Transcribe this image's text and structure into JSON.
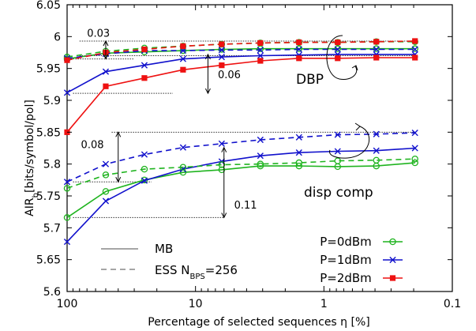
{
  "chart_data": {
    "type": "line",
    "xlabel": "Percentage of selected sequences η [%]",
    "ylabel": "AIR_b [bits/symbol/pol]",
    "x_scale": "log",
    "x_reversed": true,
    "xlim": [
      100,
      0.1
    ],
    "ylim": [
      5.6,
      6.05
    ],
    "xticks": [
      {
        "v": 100,
        "label": "100"
      },
      {
        "v": 10,
        "label": "10"
      },
      {
        "v": 1,
        "label": "1"
      },
      {
        "v": 0.1,
        "label": "0.1"
      }
    ],
    "yticks": [
      {
        "v": 5.6,
        "label": "5.6"
      },
      {
        "v": 5.65,
        "label": "5.65"
      },
      {
        "v": 5.7,
        "label": "5.7"
      },
      {
        "v": 5.75,
        "label": "5.75"
      },
      {
        "v": 5.8,
        "label": "5.8"
      },
      {
        "v": 5.85,
        "label": "5.85"
      },
      {
        "v": 5.9,
        "label": "5.9"
      },
      {
        "v": 5.95,
        "label": "5.95"
      },
      {
        "v": 6.0,
        "label": "6"
      },
      {
        "v": 6.05,
        "label": "6.05"
      }
    ],
    "grid": false,
    "legend": {
      "style_entries": [
        {
          "label": "MB",
          "dash": "solid"
        },
        {
          "label": "ESS N",
          "sub": "BPS",
          "suffix": "=256",
          "dash": "dashed"
        }
      ],
      "power_entries": [
        {
          "label": "P=0dBm",
          "color": "#1fb41f",
          "marker": "circle"
        },
        {
          "label": "P=1dBm",
          "color": "#1111cc",
          "marker": "x"
        },
        {
          "label": "P=2dBm",
          "color": "#ee1111",
          "marker": "square"
        }
      ],
      "placement": "bottom-right"
    },
    "x": [
      100,
      50,
      25,
      12.5,
      6.25,
      3.125,
      1.5625,
      0.78125,
      0.390625,
      0.1953125
    ],
    "series": [
      {
        "group": "DBP",
        "power": "P=0dBm",
        "color": "#1fb41f",
        "marker": "circle",
        "dash": "solid",
        "values": [
          5.965,
          5.974,
          5.976,
          5.978,
          5.98,
          5.981,
          5.981,
          5.981,
          5.981,
          5.981
        ]
      },
      {
        "group": "DBP",
        "power": "P=1dBm",
        "color": "#1111cc",
        "marker": "x",
        "dash": "solid",
        "values": [
          5.912,
          5.945,
          5.955,
          5.965,
          5.968,
          5.97,
          5.971,
          5.972,
          5.972,
          5.972
        ]
      },
      {
        "group": "DBP",
        "power": "P=2dBm",
        "color": "#ee1111",
        "marker": "square",
        "dash": "solid",
        "values": [
          5.85,
          5.922,
          5.935,
          5.948,
          5.955,
          5.962,
          5.966,
          5.966,
          5.967,
          5.967
        ]
      },
      {
        "group": "DBP",
        "power": "P=0dBm",
        "color": "#1fb41f",
        "marker": "circle",
        "dash": "dashed",
        "values": [
          5.968,
          5.977,
          5.982,
          5.985,
          5.988,
          5.99,
          5.991,
          5.991,
          5.992,
          5.992
        ]
      },
      {
        "group": "DBP",
        "power": "P=1dBm",
        "color": "#1111cc",
        "marker": "x",
        "dash": "dashed",
        "values": [
          5.966,
          5.973,
          5.978,
          5.978,
          5.979,
          5.979,
          5.98,
          5.98,
          5.98,
          5.98
        ]
      },
      {
        "group": "DBP",
        "power": "P=2dBm",
        "color": "#ee1111",
        "marker": "square",
        "dash": "dashed",
        "values": [
          5.963,
          5.975,
          5.98,
          5.985,
          5.988,
          5.99,
          5.991,
          5.991,
          5.992,
          5.993
        ]
      },
      {
        "group": "disp comp",
        "power": "P=0dBm",
        "color": "#1fb41f",
        "marker": "circle",
        "dash": "solid",
        "values": [
          5.716,
          5.757,
          5.775,
          5.787,
          5.791,
          5.797,
          5.797,
          5.796,
          5.797,
          5.802
        ]
      },
      {
        "group": "disp comp",
        "power": "P=1dBm",
        "color": "#1111cc",
        "marker": "x",
        "dash": "solid",
        "values": [
          5.678,
          5.742,
          5.774,
          5.792,
          5.804,
          5.813,
          5.818,
          5.82,
          5.821,
          5.825
        ]
      },
      {
        "group": "disp comp",
        "power": "P=0dBm",
        "color": "#1fb41f",
        "marker": "circle",
        "dash": "dashed",
        "values": [
          5.762,
          5.783,
          5.792,
          5.795,
          5.799,
          5.8,
          5.802,
          5.805,
          5.806,
          5.808
        ]
      },
      {
        "group": "disp comp",
        "power": "P=1dBm",
        "color": "#1111cc",
        "marker": "x",
        "dash": "dashed",
        "values": [
          5.772,
          5.8,
          5.815,
          5.826,
          5.832,
          5.838,
          5.842,
          5.846,
          5.847,
          5.849
        ]
      }
    ],
    "annotations": {
      "diff_dbp_dashed": "0.03",
      "diff_dbp_solid": "0.06",
      "diff_disp_dashed": "0.08",
      "diff_disp_solid": "0.11",
      "label_dbp": "DBP",
      "label_disp": "disp comp"
    },
    "ylabel_main": "AIR",
    "ylabel_sub": "b",
    "ylabel_rest": "[bits/symbol/pol]"
  }
}
